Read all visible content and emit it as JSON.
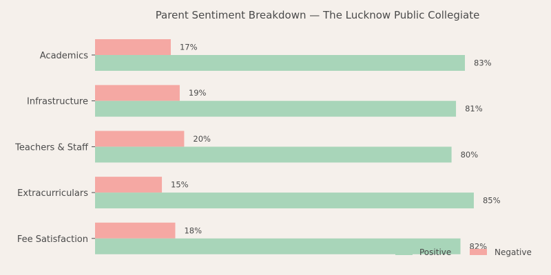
{
  "chart_data": {
    "type": "bar",
    "orientation": "horizontal",
    "title": "Parent Sentiment Breakdown — The Lucknow Public Collegiate",
    "categories": [
      "Academics",
      "Infrastructure",
      "Teachers & Staff",
      "Extracurriculars",
      "Fee Satisfaction"
    ],
    "series": [
      {
        "name": "Negative",
        "values": [
          17,
          19,
          20,
          15,
          18
        ],
        "color": "#f5a8a3"
      },
      {
        "name": "Positive",
        "values": [
          83,
          81,
          80,
          85,
          82
        ],
        "color": "#a8d5b9"
      }
    ],
    "value_suffix": "%",
    "xlim": [
      0,
      100
    ],
    "grid": false,
    "legend": {
      "placement": "bottom-right",
      "order": [
        "Positive",
        "Negative"
      ]
    }
  }
}
